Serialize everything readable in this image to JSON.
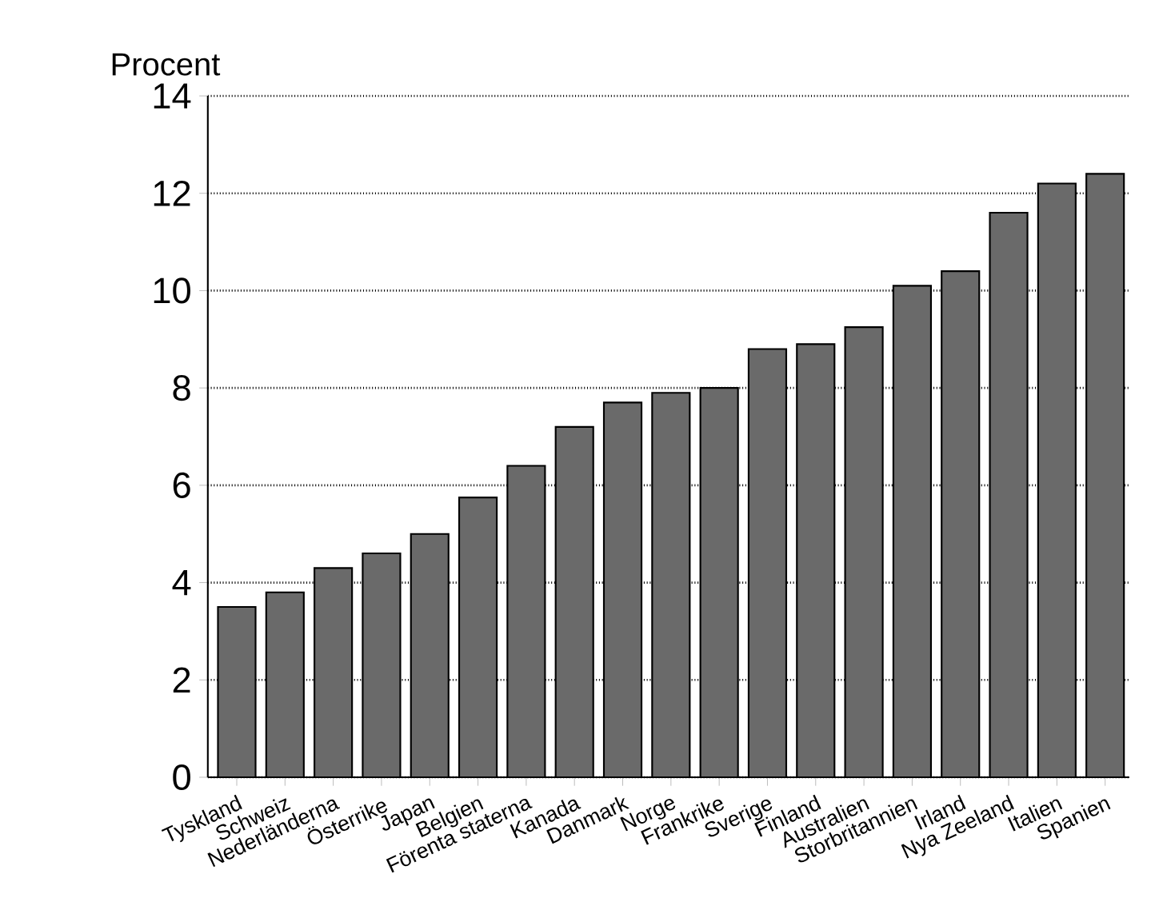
{
  "chart_data": {
    "type": "bar",
    "ylabel": "Procent",
    "categories": [
      "Tyskland",
      "Schweiz",
      "Nederländerna",
      "Österrike",
      "Japan",
      "Belgien",
      "Förenta staterna",
      "Kanada",
      "Danmark",
      "Norge",
      "Frankrike",
      "Sverige",
      "Finland",
      "Australien",
      "Storbritannien",
      "Irland",
      "Nya Zeeland",
      "Italien",
      "Spanien"
    ],
    "values": [
      3.5,
      3.8,
      4.3,
      4.6,
      5.0,
      5.75,
      6.4,
      7.2,
      7.7,
      7.9,
      8.0,
      8.8,
      8.9,
      9.25,
      10.1,
      10.4,
      11.6,
      12.2,
      12.4
    ],
    "color": "#6a6a6a",
    "ylim": [
      0,
      14
    ],
    "yticks": [
      0,
      2,
      4,
      6,
      8,
      10,
      12,
      14
    ],
    "grid": "y"
  }
}
